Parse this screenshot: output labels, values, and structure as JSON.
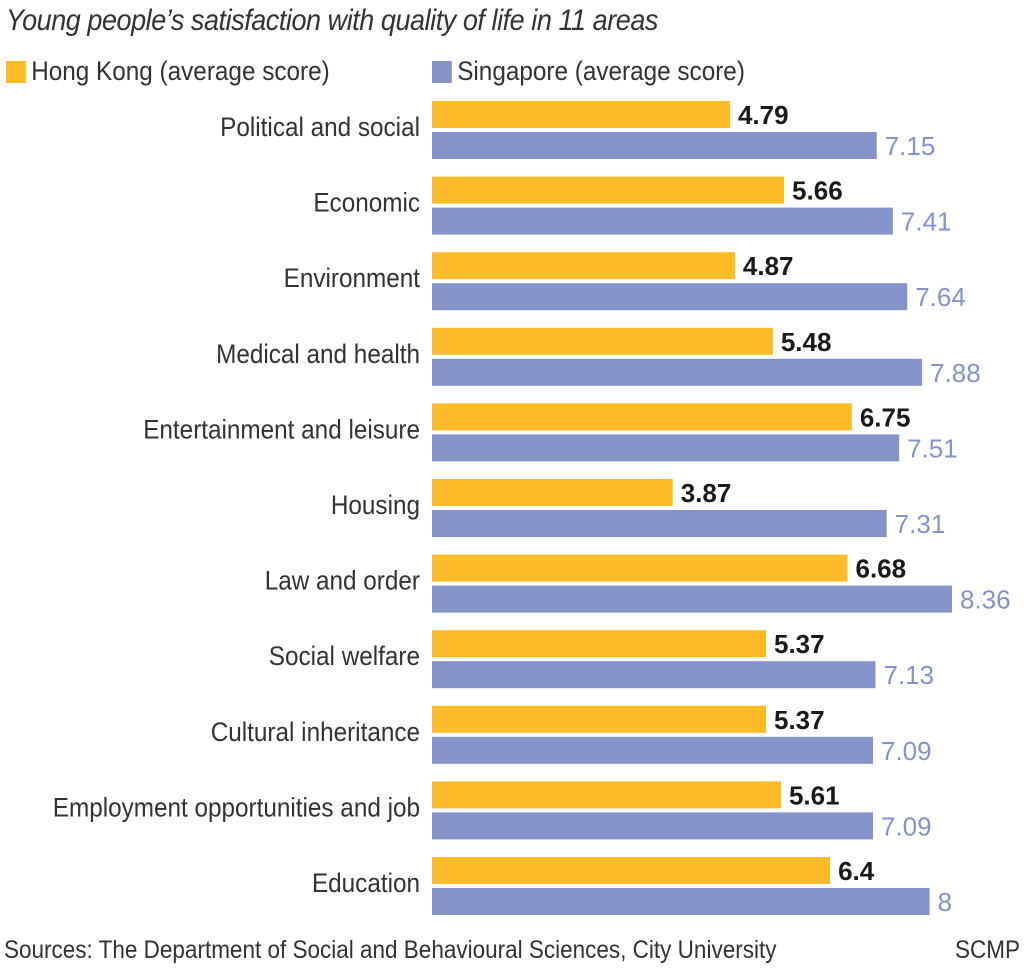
{
  "chart_data": {
    "type": "bar",
    "orientation": "horizontal",
    "title": "Young people’s satisfaction with quality of life in 11 areas",
    "categories": [
      "Political and social",
      "Economic",
      "Environment",
      "Medical and health",
      "Entertainment and leisure",
      "Housing",
      "Law and order",
      "Social welfare",
      "Cultural inheritance",
      "Employment opportunities and job",
      "Education"
    ],
    "series": [
      {
        "name": "Hong Kong (average score)",
        "color": "#FDBB27",
        "label_color": "#1a1a1a",
        "values": [
          4.79,
          5.66,
          4.87,
          5.48,
          6.75,
          3.87,
          6.68,
          5.37,
          5.37,
          5.61,
          6.4
        ]
      },
      {
        "name": "Singapore (average score)",
        "color": "#8494CA",
        "label_color": "#8494CA",
        "values": [
          7.15,
          7.41,
          7.64,
          7.88,
          7.51,
          7.31,
          8.36,
          7.13,
          7.09,
          7.09,
          8
        ]
      }
    ],
    "value_labels": {
      "hong_kong": [
        "4.79",
        "5.66",
        "4.87",
        "5.48",
        "6.75",
        "3.87",
        "6.68",
        "5.37",
        "5.37",
        "5.61",
        "6.4"
      ],
      "singapore": [
        "7.15",
        "7.41",
        "7.64",
        "7.88",
        "7.51",
        "7.31",
        "8.36",
        "7.13",
        "7.09",
        "7.09",
        "8"
      ]
    },
    "xlim": [
      0,
      10
    ],
    "xlabel": "",
    "ylabel": "",
    "grid": false,
    "legend": "top"
  },
  "footer": {
    "source": "Sources: The Department of Social and Behavioural Sciences, City University",
    "credit": "SCMP"
  }
}
